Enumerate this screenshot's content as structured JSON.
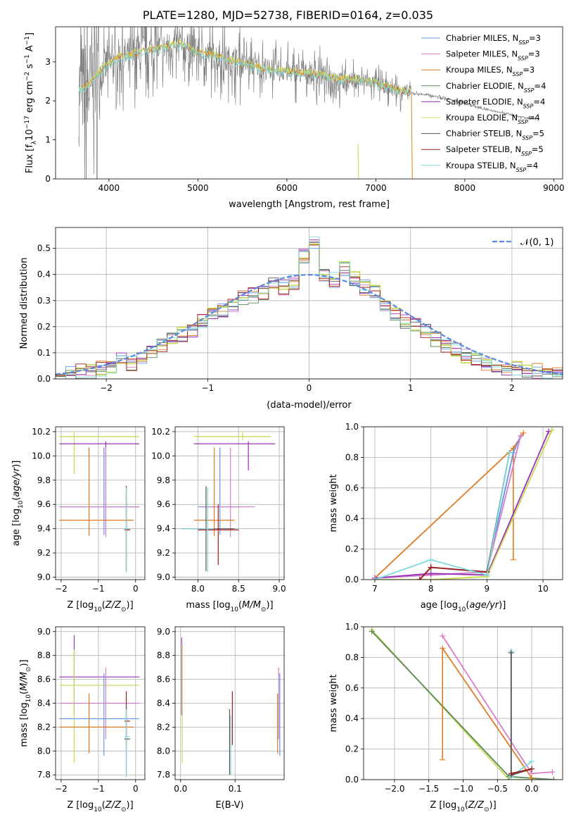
{
  "title": "PLATE=1280, MJD=52738, FIBERID=0164, z=0.035",
  "colors": {
    "chabrier_miles": "#6495ed",
    "salpeter_miles": "#db7dc8",
    "kroupa_miles": "#e07b22",
    "chabrier_elodie": "#5b8a5b",
    "salpeter_elodie": "#9b30b8",
    "kroupa_elodie": "#c8d850",
    "chabrier_stelib": "#555555",
    "salpeter_stelib": "#a01c1c",
    "kroupa_stelib": "#7edada",
    "data": "#808080",
    "gaussian": "#5a8ade"
  },
  "legend_entries": [
    {
      "name": "Chabrier MILES",
      "nssp": "3",
      "key": "chabrier_miles"
    },
    {
      "name": "Salpeter MILES",
      "nssp": "3",
      "key": "salpeter_miles"
    },
    {
      "name": "Kroupa MILES",
      "nssp": "3",
      "key": "kroupa_miles"
    },
    {
      "name": "Chabrier ELODIE",
      "nssp": "4",
      "key": "chabrier_elodie"
    },
    {
      "name": "Salpeter ELODIE",
      "nssp": "4",
      "key": "salpeter_elodie"
    },
    {
      "name": "Kroupa ELODIE",
      "nssp": "4",
      "key": "kroupa_elodie"
    },
    {
      "name": "Chabrier STELIB",
      "nssp": "5",
      "key": "chabrier_stelib"
    },
    {
      "name": "Salpeter STELIB",
      "nssp": "5",
      "key": "salpeter_stelib"
    },
    {
      "name": "Kroupa STELIB",
      "nssp": "4",
      "key": "kroupa_stelib"
    }
  ],
  "chart_data": [
    {
      "id": "spectrum",
      "type": "line",
      "xlabel": "wavelength [Angstrom, rest frame]",
      "ylabel": "Flux [f_λ 10^-17 erg cm^-2 s^-1 A^-1]",
      "xlim": [
        3400,
        9100
      ],
      "ylim": [
        0,
        3.9
      ],
      "xticks": [
        4000,
        5000,
        6000,
        7000,
        8000,
        9000
      ],
      "yticks": [
        0,
        1,
        2,
        3
      ],
      "model_continuum": {
        "x": [
          3660,
          3700,
          3800,
          3900,
          4000,
          4100,
          4200,
          4300,
          4400,
          4500,
          4600,
          4700,
          4800,
          4900,
          5000,
          5200,
          5400,
          5600,
          5800,
          6000,
          6200,
          6400,
          6600,
          6800,
          7000,
          7200,
          7400
        ],
        "y": [
          2.3,
          2.3,
          2.45,
          2.75,
          2.95,
          3.1,
          3.15,
          3.2,
          3.3,
          3.32,
          3.35,
          3.42,
          3.45,
          3.35,
          3.25,
          3.15,
          3.0,
          2.9,
          2.8,
          2.75,
          2.7,
          2.65,
          2.55,
          2.55,
          2.45,
          2.3,
          2.2
        ]
      },
      "data_continuum": {
        "x": [
          7400,
          7600,
          7800,
          8000,
          8200,
          8400,
          8600,
          8800
        ],
        "y": [
          2.2,
          2.15,
          2.05,
          1.95,
          1.8,
          1.7,
          1.6,
          1.55
        ]
      }
    },
    {
      "id": "residuals",
      "type": "line",
      "xlabel": "(data-model)/error",
      "ylabel": "Normed distribution",
      "xlim": [
        -2.5,
        2.5
      ],
      "ylim": [
        0,
        0.58
      ],
      "xticks": [
        -2,
        -1,
        0,
        1,
        2
      ],
      "yticks": [
        0.0,
        0.1,
        0.2,
        0.3,
        0.4,
        0.5
      ],
      "gaussian_label": "𝒩(0, 1)",
      "histogram_bin_width": 0.1,
      "histogram": [
        0.01,
        0.02,
        0.03,
        0.03,
        0.04,
        0.05,
        0.07,
        0.06,
        0.08,
        0.11,
        0.13,
        0.15,
        0.17,
        0.19,
        0.22,
        0.25,
        0.26,
        0.28,
        0.31,
        0.32,
        0.33,
        0.36,
        0.35,
        0.37,
        0.47,
        0.52,
        0.39,
        0.38,
        0.42,
        0.38,
        0.35,
        0.33,
        0.28,
        0.25,
        0.22,
        0.21,
        0.18,
        0.15,
        0.13,
        0.11,
        0.09,
        0.07,
        0.06,
        0.05,
        0.04,
        0.04,
        0.03,
        0.03,
        0.02,
        0.02
      ]
    },
    {
      "id": "age_vs_Z",
      "type": "errorbar",
      "xlabel": "Z [log10(Z/Z⊙)]",
      "ylabel": "age [log10(age/yr)]",
      "xlim": [
        -2.15,
        0.25
      ],
      "ylim": [
        8.98,
        10.24
      ],
      "xticks": [
        -2,
        -1,
        0
      ],
      "yticks": [
        9.0,
        9.2,
        9.4,
        9.6,
        9.8,
        10.0,
        10.2
      ],
      "points": [
        {
          "s": "kroupa_elodie",
          "x": -1.65,
          "y": 10.16,
          "xe": [
            -2.05,
            0.1
          ],
          "ye": [
            9.85,
            10.2
          ]
        },
        {
          "s": "salpeter_elodie",
          "x": -0.8,
          "y": 10.1,
          "xe": [
            -2.05,
            0.1
          ],
          "ye": [
            9.35,
            10.12
          ]
        },
        {
          "s": "chabrier_miles",
          "x": -0.85,
          "y": 9.58,
          "xe": [
            -2.05,
            0.1
          ],
          "ye": [
            9.35,
            10.07
          ]
        },
        {
          "s": "salpeter_miles",
          "x": -0.8,
          "y": 9.58,
          "xe": [
            -2.05,
            0.1
          ],
          "ye": [
            9.33,
            10.07
          ]
        },
        {
          "s": "kroupa_miles",
          "x": -1.25,
          "y": 9.47,
          "xe": [
            -2.05,
            -0.05
          ],
          "ye": [
            9.34,
            10.07
          ]
        },
        {
          "s": "chabrier_stelib",
          "x": -0.25,
          "y": 9.4,
          "xe": [
            -0.3,
            -0.15
          ],
          "ye": [
            9.05,
            9.75
          ]
        },
        {
          "s": "salpeter_stelib",
          "x": -0.25,
          "y": 9.39,
          "xe": [
            -0.3,
            -0.15
          ],
          "ye": [
            9.05,
            9.75
          ]
        },
        {
          "s": "kroupa_stelib",
          "x": -0.25,
          "y": 9.4,
          "xe": [
            -0.3,
            -0.15
          ],
          "ye": [
            9.04,
            9.74
          ]
        }
      ]
    },
    {
      "id": "age_vs_mass",
      "type": "errorbar",
      "xlabel": "mass [log10(M/M⊙)]",
      "ylabel": "",
      "xlim": [
        7.72,
        9.06
      ],
      "ylim": [
        8.98,
        10.24
      ],
      "xticks": [
        8.0,
        8.5,
        9.0
      ],
      "yticks": [
        9.0,
        9.2,
        9.4,
        9.6,
        9.8,
        10.0,
        10.2
      ],
      "points": [
        {
          "s": "kroupa_elodie",
          "x": 8.55,
          "y": 10.16,
          "xe": [
            7.95,
            8.9
          ],
          "ye": [
            10.13,
            10.2
          ]
        },
        {
          "s": "salpeter_elodie",
          "x": 8.62,
          "y": 10.1,
          "xe": [
            7.95,
            8.95
          ],
          "ye": [
            9.88,
            10.12
          ]
        },
        {
          "s": "chabrier_miles",
          "x": 8.27,
          "y": 9.58,
          "xe": [
            8.0,
            8.55
          ],
          "ye": [
            9.35,
            10.07
          ]
        },
        {
          "s": "salpeter_miles",
          "x": 8.4,
          "y": 9.58,
          "xe": [
            8.05,
            8.7
          ],
          "ye": [
            9.33,
            10.07
          ]
        },
        {
          "s": "kroupa_miles",
          "x": 8.2,
          "y": 9.47,
          "xe": [
            7.95,
            8.45
          ],
          "ye": [
            9.34,
            10.07
          ]
        },
        {
          "s": "chabrier_stelib",
          "x": 8.1,
          "y": 9.4,
          "xe": [
            7.8,
            8.45
          ],
          "ye": [
            9.05,
            9.75
          ]
        },
        {
          "s": "salpeter_stelib",
          "x": 8.25,
          "y": 9.39,
          "xe": [
            8.0,
            8.5
          ],
          "ye": [
            9.1,
            9.6
          ]
        },
        {
          "s": "kroupa_stelib",
          "x": 8.12,
          "y": 9.4,
          "xe": [
            7.8,
            8.2
          ],
          "ye": [
            9.04,
            9.74
          ]
        }
      ]
    },
    {
      "id": "weight_vs_age",
      "type": "line",
      "xlabel": "age [log10(age/yr)]",
      "ylabel": "mass weight",
      "xlim": [
        6.8,
        10.35
      ],
      "ylim": [
        0,
        1.0
      ],
      "xticks": [
        7,
        8,
        9,
        10
      ],
      "yticks": [
        0.0,
        0.2,
        0.4,
        0.6,
        0.8,
        1.0
      ],
      "series": [
        {
          "s": "kroupa_miles",
          "x": [
            7.0,
            9.47,
            9.65
          ],
          "y": [
            0.01,
            0.86,
            0.96
          ],
          "errs": [
            [
              9.47,
              0.13,
              0.86
            ]
          ]
        },
        {
          "s": "chabrier_miles",
          "x": [
            7.0,
            8.0,
            9.0,
            9.47,
            9.6
          ],
          "y": [
            0.01,
            0.03,
            0.05,
            0.83,
            0.94
          ]
        },
        {
          "s": "salpeter_miles",
          "x": [
            7.0,
            8.0,
            9.0,
            9.6
          ],
          "y": [
            0.01,
            0.03,
            0.05,
            0.94
          ]
        },
        {
          "s": "salpeter_elodie",
          "x": [
            7.0,
            8.0,
            9.0,
            10.1
          ],
          "y": [
            0.01,
            0.04,
            0.03,
            0.97
          ]
        },
        {
          "s": "kroupa_elodie",
          "x": [
            7.0,
            8.0,
            9.0,
            10.16
          ],
          "y": [
            0.0,
            0.0,
            0.02,
            0.98
          ]
        },
        {
          "s": "chabrier_stelib",
          "x": [
            7.8,
            8.0,
            9.0,
            9.4
          ],
          "y": [
            0.0,
            0.08,
            0.05,
            0.83
          ]
        },
        {
          "s": "salpeter_stelib",
          "x": [
            7.8,
            8.0,
            9.0
          ],
          "y": [
            0.0,
            0.08,
            0.05
          ]
        },
        {
          "s": "kroupa_stelib",
          "x": [
            7.0,
            8.0,
            9.0,
            9.4
          ],
          "y": [
            0.0,
            0.13,
            0.03,
            0.83
          ]
        }
      ]
    },
    {
      "id": "mass_vs_Z",
      "type": "errorbar",
      "xlabel": "Z [log10(Z/Z⊙)]",
      "ylabel": "mass [log10(M/M⊙)]",
      "xlim": [
        -2.15,
        0.25
      ],
      "ylim": [
        7.76,
        9.04
      ],
      "xticks": [
        -2,
        -1,
        0
      ],
      "yticks": [
        7.8,
        8.0,
        8.2,
        8.4,
        8.6,
        8.8,
        9.0
      ],
      "points": [
        {
          "s": "salpeter_elodie",
          "x": -1.65,
          "y": 8.62,
          "xe": [
            -2.05,
            0.1
          ],
          "ye": [
            8.3,
            8.97
          ]
        },
        {
          "s": "kroupa_elodie",
          "x": -1.65,
          "y": 8.55,
          "xe": [
            -2.05,
            0.1
          ],
          "ye": [
            7.9,
            8.85
          ]
        },
        {
          "s": "salpeter_miles",
          "x": -0.8,
          "y": 8.4,
          "xe": [
            -2.05,
            0.1
          ],
          "ye": [
            8.1,
            8.7
          ]
        },
        {
          "s": "chabrier_miles",
          "x": -0.85,
          "y": 8.27,
          "xe": [
            -2.05,
            0.1
          ],
          "ye": [
            7.96,
            8.65
          ]
        },
        {
          "s": "kroupa_miles",
          "x": -1.25,
          "y": 8.2,
          "xe": [
            -2.05,
            -0.05
          ],
          "ye": [
            7.98,
            8.48
          ]
        },
        {
          "s": "salpeter_stelib",
          "x": -0.25,
          "y": 8.25,
          "xe": [
            -0.3,
            -0.15
          ],
          "ye": [
            8.05,
            8.5
          ]
        },
        {
          "s": "chabrier_stelib",
          "x": -0.25,
          "y": 8.1,
          "xe": [
            -0.3,
            -0.15
          ],
          "ye": [
            7.8,
            8.4
          ]
        },
        {
          "s": "kroupa_stelib",
          "x": -0.25,
          "y": 8.12,
          "xe": [
            -0.3,
            -0.15
          ],
          "ye": [
            7.78,
            8.35
          ]
        }
      ]
    },
    {
      "id": "mass_vs_EBV",
      "type": "errorbar",
      "xlabel": "E(B-V)",
      "ylabel": "",
      "xlim": [
        -0.01,
        0.19
      ],
      "ylim": [
        7.76,
        9.04
      ],
      "xticks": [
        0.0,
        0.1
      ],
      "yticks": [
        7.8,
        8.0,
        8.2,
        8.4,
        8.6,
        8.8,
        9.0
      ],
      "points": [
        {
          "s": "salpeter_elodie",
          "x": 0.002,
          "y": 8.62,
          "xe": [
            0.002,
            0.002
          ],
          "ye": [
            8.3,
            8.95
          ]
        },
        {
          "s": "kroupa_elodie",
          "x": 0.003,
          "y": 8.55,
          "xe": [
            0.003,
            0.003
          ],
          "ye": [
            7.9,
            8.9
          ]
        },
        {
          "s": "chabrier_stelib",
          "x": 0.09,
          "y": 8.1,
          "xe": [
            0.09,
            0.09
          ],
          "ye": [
            7.8,
            8.35
          ]
        },
        {
          "s": "kroupa_stelib",
          "x": 0.092,
          "y": 8.12,
          "xe": [
            0.092,
            0.092
          ],
          "ye": [
            7.8,
            8.3
          ]
        },
        {
          "s": "salpeter_stelib",
          "x": 0.095,
          "y": 8.25,
          "xe": [
            0.095,
            0.095
          ],
          "ye": [
            8.05,
            8.5
          ]
        },
        {
          "s": "kroupa_miles",
          "x": 0.178,
          "y": 8.2,
          "xe": [
            0.178,
            0.178
          ],
          "ye": [
            7.98,
            8.48
          ]
        },
        {
          "s": "salpeter_miles",
          "x": 0.18,
          "y": 8.4,
          "xe": [
            0.18,
            0.18
          ],
          "ye": [
            8.1,
            8.7
          ]
        },
        {
          "s": "chabrier_miles",
          "x": 0.182,
          "y": 8.27,
          "xe": [
            0.182,
            0.182
          ],
          "ye": [
            7.96,
            8.65
          ]
        }
      ]
    },
    {
      "id": "weight_vs_Z",
      "type": "line",
      "xlabel": "Z [log10(Z/Z⊙)]",
      "ylabel": "mass weight",
      "xlim": [
        -2.45,
        0.45
      ],
      "ylim": [
        0,
        1.0
      ],
      "xticks": [
        -2.0,
        -1.5,
        -1.0,
        -0.5,
        0.0
      ],
      "yticks": [
        0.0,
        0.2,
        0.4,
        0.6,
        0.8,
        1.0
      ],
      "series": [
        {
          "s": "kroupa_elodie",
          "x": [
            -2.33,
            -0.33,
            0.32
          ],
          "y": [
            0.98,
            0.0,
            0.0
          ]
        },
        {
          "s": "chabrier_elodie",
          "x": [
            -2.33,
            -0.33,
            0.32
          ],
          "y": [
            0.97,
            0.02,
            0.0
          ]
        },
        {
          "s": "salpeter_miles",
          "x": [
            -1.3,
            0.0,
            0.3
          ],
          "y": [
            0.94,
            0.04,
            0.05
          ]
        },
        {
          "s": "kroupa_miles",
          "x": [
            -1.3,
            0.0
          ],
          "y": [
            0.86,
            0.01
          ],
          "errs": [
            [
              -1.3,
              0.13,
              0.86
            ]
          ]
        },
        {
          "s": "kroupa_stelib",
          "x": [
            -0.3,
            -0.3,
            0.0
          ],
          "y": [
            0.84,
            0.02,
            0.12
          ]
        },
        {
          "s": "chabrier_stelib",
          "x": [
            -0.3,
            -0.3,
            0.0
          ],
          "y": [
            0.83,
            0.03,
            0.07
          ]
        },
        {
          "s": "salpeter_stelib",
          "x": [
            -0.3,
            0.0
          ],
          "y": [
            0.04,
            0.07
          ]
        }
      ]
    }
  ]
}
